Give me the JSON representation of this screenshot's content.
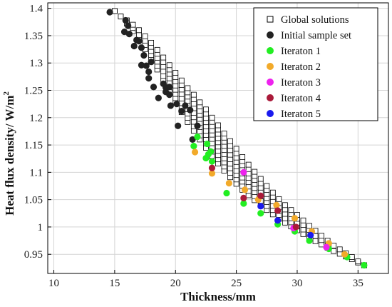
{
  "chart_data": {
    "type": "scatter",
    "title": "",
    "xlabel": "Thickness/mm",
    "ylabel": "Heat flux density/ W/m",
    "ylabel_superscript": "2",
    "xlim": [
      9.5,
      37.5
    ],
    "ylim": [
      0.915,
      1.41
    ],
    "xticks": [
      10,
      15,
      20,
      25,
      30,
      35
    ],
    "yticks": [
      0.95,
      1,
      1.05,
      1.1,
      1.15,
      1.2,
      1.25,
      1.3,
      1.35,
      1.4
    ],
    "ytick_labels": [
      "0.95",
      "1",
      "1.05",
      "1.1",
      "1.15",
      "1.2",
      "1.25",
      "1.3",
      "1.35",
      "1.4"
    ],
    "grid": true,
    "legend_position": "top-right",
    "series": [
      {
        "name": "Global solutions",
        "marker": "square-open",
        "color": "#000000",
        "front": [
          [
            15.0,
            1.395
          ],
          [
            15.5,
            1.385
          ],
          [
            16.0,
            1.372
          ],
          [
            16.5,
            1.358
          ],
          [
            17.0,
            1.342
          ],
          [
            17.5,
            1.325
          ],
          [
            18.0,
            1.307
          ],
          [
            18.5,
            1.288
          ],
          [
            19.0,
            1.268
          ],
          [
            19.5,
            1.248
          ],
          [
            20.0,
            1.228
          ],
          [
            20.5,
            1.21
          ],
          [
            21.0,
            1.192
          ],
          [
            21.5,
            1.176
          ],
          [
            22.0,
            1.16
          ],
          [
            22.5,
            1.145
          ],
          [
            23.0,
            1.13
          ],
          [
            23.5,
            1.116
          ],
          [
            24.0,
            1.103
          ],
          [
            24.5,
            1.091
          ],
          [
            25.0,
            1.079
          ],
          [
            25.5,
            1.068
          ],
          [
            26.0,
            1.058
          ],
          [
            26.5,
            1.049
          ],
          [
            27.0,
            1.04
          ],
          [
            27.5,
            1.031
          ],
          [
            28.0,
            1.023
          ],
          [
            28.5,
            1.015
          ],
          [
            29.0,
            1.008
          ],
          [
            29.5,
            1.001
          ],
          [
            30.0,
            0.994
          ],
          [
            30.5,
            0.987
          ],
          [
            31.0,
            0.98
          ],
          [
            31.5,
            0.974
          ],
          [
            32.0,
            0.968
          ],
          [
            32.5,
            0.962
          ],
          [
            33.0,
            0.956
          ],
          [
            33.5,
            0.951
          ],
          [
            34.0,
            0.946
          ],
          [
            34.5,
            0.941
          ],
          [
            35.0,
            0.935
          ],
          [
            35.5,
            0.93
          ]
        ],
        "band_width": [
          0.0,
          0.0,
          0.006,
          0.012,
          0.018,
          0.024,
          0.03,
          0.036,
          0.042,
          0.048,
          0.054,
          0.058,
          0.062,
          0.066,
          0.068,
          0.07,
          0.07,
          0.07,
          0.068,
          0.066,
          0.064,
          0.06,
          0.056,
          0.052,
          0.048,
          0.044,
          0.04,
          0.036,
          0.032,
          0.03,
          0.028,
          0.025,
          0.022,
          0.019,
          0.016,
          0.013,
          0.01,
          0.008,
          0.006,
          0.004,
          0.002,
          0.0
        ]
      },
      {
        "name": "Initial sample set",
        "marker": "circle",
        "color": "#222222",
        "points": [
          [
            14.6,
            1.393
          ],
          [
            15.9,
            1.378
          ],
          [
            16.1,
            1.368
          ],
          [
            15.8,
            1.357
          ],
          [
            16.2,
            1.353
          ],
          [
            16.8,
            1.342
          ],
          [
            17.0,
            1.34
          ],
          [
            16.6,
            1.331
          ],
          [
            17.2,
            1.328
          ],
          [
            17.4,
            1.314
          ],
          [
            17.2,
            1.296
          ],
          [
            17.6,
            1.295
          ],
          [
            18.0,
            1.302
          ],
          [
            17.8,
            1.284
          ],
          [
            17.8,
            1.272
          ],
          [
            18.2,
            1.256
          ],
          [
            19.0,
            1.262
          ],
          [
            19.2,
            1.255
          ],
          [
            19.5,
            1.256
          ],
          [
            19.2,
            1.247
          ],
          [
            18.6,
            1.236
          ],
          [
            19.5,
            1.242
          ],
          [
            19.6,
            1.222
          ],
          [
            20.1,
            1.225
          ],
          [
            20.5,
            1.212
          ],
          [
            20.8,
            1.222
          ],
          [
            21.2,
            1.214
          ],
          [
            20.2,
            1.185
          ],
          [
            21.8,
            1.185
          ],
          [
            21.4,
            1.16
          ]
        ]
      },
      {
        "name": "Iteraton 1",
        "marker": "circle",
        "color": "#22ee22",
        "points": [
          [
            21.8,
            1.165
          ],
          [
            21.5,
            1.148
          ],
          [
            22.6,
            1.152
          ],
          [
            22.9,
            1.138
          ],
          [
            22.7,
            1.133
          ],
          [
            22.5,
            1.126
          ],
          [
            23.0,
            1.12
          ],
          [
            24.2,
            1.062
          ],
          [
            25.6,
            1.043
          ],
          [
            27.0,
            1.025
          ],
          [
            28.4,
            1.005
          ],
          [
            29.8,
            0.992
          ],
          [
            31.0,
            0.975
          ],
          [
            32.6,
            0.96
          ],
          [
            34.1,
            0.945
          ],
          [
            35.5,
            0.93
          ]
        ]
      },
      {
        "name": "Iteraton 2",
        "marker": "circle",
        "color": "#f2aa2a",
        "points": [
          [
            21.6,
            1.137
          ],
          [
            23.0,
            1.098
          ],
          [
            24.4,
            1.08
          ],
          [
            25.7,
            1.068
          ],
          [
            26.8,
            1.05
          ],
          [
            28.3,
            1.04
          ],
          [
            29.8,
            1.016
          ],
          [
            31.2,
            0.992
          ],
          [
            32.6,
            0.97
          ],
          [
            33.9,
            0.95
          ]
        ]
      },
      {
        "name": "Iteraton 3",
        "marker": "circle",
        "color": "#ee22ee",
        "points": [
          [
            25.6,
            1.1
          ],
          [
            29.7,
            0.998
          ],
          [
            32.4,
            0.963
          ]
        ]
      },
      {
        "name": "Iteraton 4",
        "marker": "circle",
        "color": "#aa1a3a",
        "points": [
          [
            23.0,
            1.108
          ],
          [
            25.6,
            1.053
          ],
          [
            27.0,
            1.057
          ],
          [
            28.4,
            1.03
          ],
          [
            29.9,
            1.0
          ]
        ]
      },
      {
        "name": "Iteraton 5",
        "marker": "circle",
        "color": "#1a1aee",
        "points": [
          [
            27.0,
            1.038
          ],
          [
            28.4,
            1.012
          ],
          [
            31.1,
            0.985
          ]
        ]
      }
    ]
  }
}
